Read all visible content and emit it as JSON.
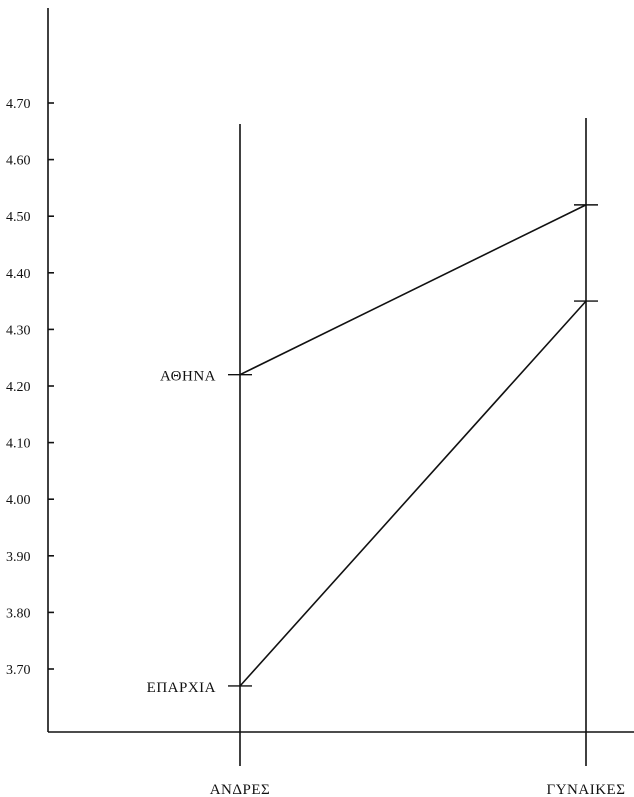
{
  "chart_data": {
    "type": "line",
    "categories": [
      "ΑΝΔΡΕΣ",
      "ΓΥΝΑΙΚΕΣ"
    ],
    "series": [
      {
        "name": "ΑΘΗΝΑ",
        "values": [
          4.22,
          4.52
        ]
      },
      {
        "name": "ΕΠΑΡΧΙΑ",
        "values": [
          3.67,
          4.35
        ]
      }
    ],
    "yticks": [
      "3.70",
      "3.80",
      "3.90",
      "4.00",
      "4.10",
      "4.20",
      "4.30",
      "4.40",
      "4.50",
      "4.60",
      "4.70"
    ],
    "ylim": [
      3.6,
      4.7
    ],
    "title": "",
    "xlabel": "",
    "ylabel": "",
    "grid": false,
    "legend": "series labels placed at left end of each line",
    "colors": {
      "ink": "#111111",
      "background": "#ffffff"
    }
  }
}
